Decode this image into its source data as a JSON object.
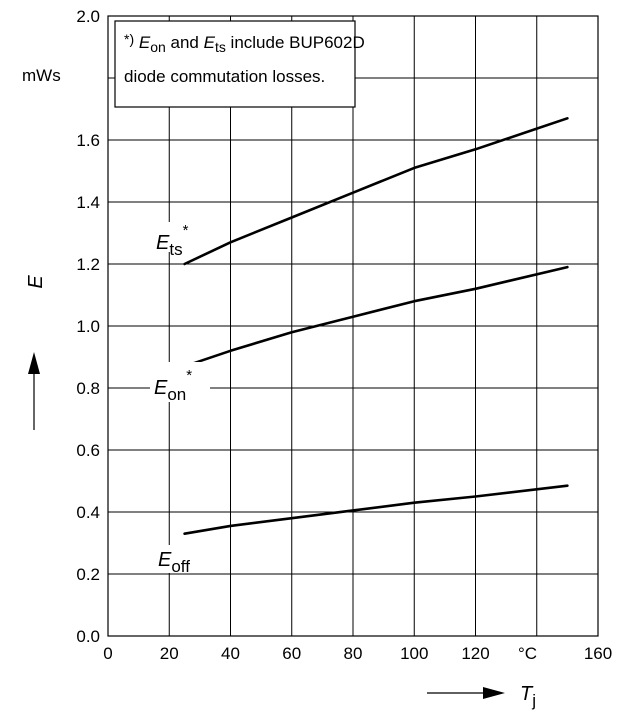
{
  "chart_data": {
    "type": "line",
    "x": [
      25,
      40,
      60,
      80,
      100,
      120,
      150
    ],
    "xlim": [
      0,
      160
    ],
    "ylim": [
      0.0,
      2.0
    ],
    "x_ticks": [
      "0",
      "20",
      "40",
      "60",
      "80",
      "100",
      "120",
      "160"
    ],
    "x_unit": "°C",
    "y_ticks": [
      "0.0",
      "0.2",
      "0.4",
      "0.6",
      "0.8",
      "1.0",
      "1.2",
      "1.4",
      "1.6",
      "2.0"
    ],
    "y_unit": "mWs",
    "xlabel": {
      "main": "T",
      "sub": "j"
    },
    "ylabel": "E",
    "grid": true,
    "series": [
      {
        "label_main": "E",
        "label_sub": "ts",
        "label_sup": "*",
        "values": [
          1.2,
          1.27,
          1.35,
          1.43,
          1.51,
          1.57,
          1.67
        ]
      },
      {
        "label_main": "E",
        "label_sub": "on",
        "label_sup": "*",
        "values": [
          0.87,
          0.92,
          0.98,
          1.03,
          1.08,
          1.12,
          1.19
        ]
      },
      {
        "label_main": "E",
        "label_sub": "off",
        "label_sup": "",
        "values": [
          0.33,
          0.355,
          0.38,
          0.405,
          0.43,
          0.45,
          0.485
        ]
      }
    ],
    "annotation": {
      "mark": "*)",
      "e1": "E",
      "e1_sub": "on",
      "and": " and ",
      "e2": "E",
      "e2_sub": "ts",
      "rest": " include BUP602D",
      "line2": "diode commutation losses."
    }
  }
}
